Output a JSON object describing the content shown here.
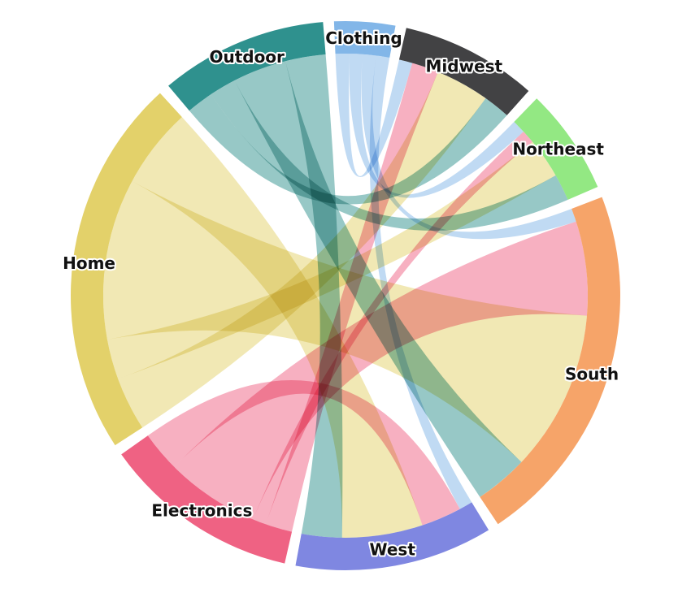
{
  "chart_data": {
    "type": "chord",
    "title": "",
    "nodes": [
      {
        "name": "Clothing",
        "color": "#82b6e8"
      },
      {
        "name": "Midwest",
        "color": "#424244"
      },
      {
        "name": "Northeast",
        "color": "#93e883"
      },
      {
        "name": "South",
        "color": "#f6a469"
      },
      {
        "name": "West",
        "color": "#7f87e1"
      },
      {
        "name": "Electronics",
        "color": "#ef6283"
      },
      {
        "name": "Home",
        "color": "#e3d16a"
      },
      {
        "name": "Outdoor",
        "color": "#2f918e"
      }
    ],
    "flows": [
      {
        "source": "Clothing",
        "target": "Midwest",
        "value": 1
      },
      {
        "source": "Clothing",
        "target": "Northeast",
        "value": 1
      },
      {
        "source": "Clothing",
        "target": "South",
        "value": 1
      },
      {
        "source": "Clothing",
        "target": "West",
        "value": 1
      },
      {
        "source": "Electronics",
        "target": "Midwest",
        "value": 2
      },
      {
        "source": "Electronics",
        "target": "Northeast",
        "value": 1
      },
      {
        "source": "Electronics",
        "target": "South",
        "value": 7
      },
      {
        "source": "Electronics",
        "target": "West",
        "value": 3
      },
      {
        "source": "Home",
        "target": "Midwest",
        "value": 4
      },
      {
        "source": "Home",
        "target": "Northeast",
        "value": 3
      },
      {
        "source": "Home",
        "target": "South",
        "value": 12
      },
      {
        "source": "Home",
        "target": "West",
        "value": 6
      },
      {
        "source": "Outdoor",
        "target": "Midwest",
        "value": 2
      },
      {
        "source": "Outdoor",
        "target": "Northeast",
        "value": 2
      },
      {
        "source": "Outdoor",
        "target": "South",
        "value": 4
      },
      {
        "source": "Outdoor",
        "target": "West",
        "value": 3
      }
    ]
  }
}
